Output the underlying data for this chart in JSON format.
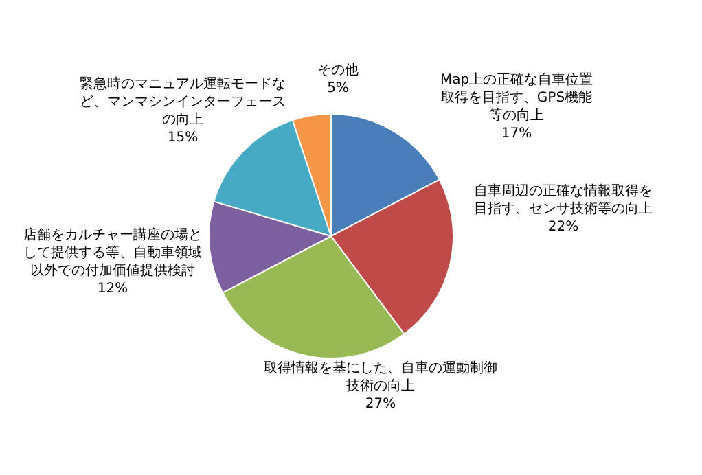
{
  "chart_data": {
    "type": "pie",
    "categories": [
      "Map上の正確な自車位置取得を目指す、GPS機能等の向上",
      "自車周辺の正確な情報取得を目指す、センサ技術等の向上",
      "取得情報を基にした、自車の運動制御技術の向上",
      "店舗をカルチャー講座の場として提供する等、自動車領域以外での付加価値提供検討",
      "緊急時のマニュアル運転モードなど、マンマシンインターフェースの向上",
      "その他"
    ],
    "values": [
      17,
      22,
      27,
      12,
      15,
      5
    ],
    "colors": [
      "#4a7ebb",
      "#be4b48",
      "#98b954",
      "#7d60a0",
      "#46aac5",
      "#f79646"
    ],
    "value_labels": [
      "17%",
      "22%",
      "27%",
      "12%",
      "15%",
      "5%"
    ],
    "legend": false
  }
}
